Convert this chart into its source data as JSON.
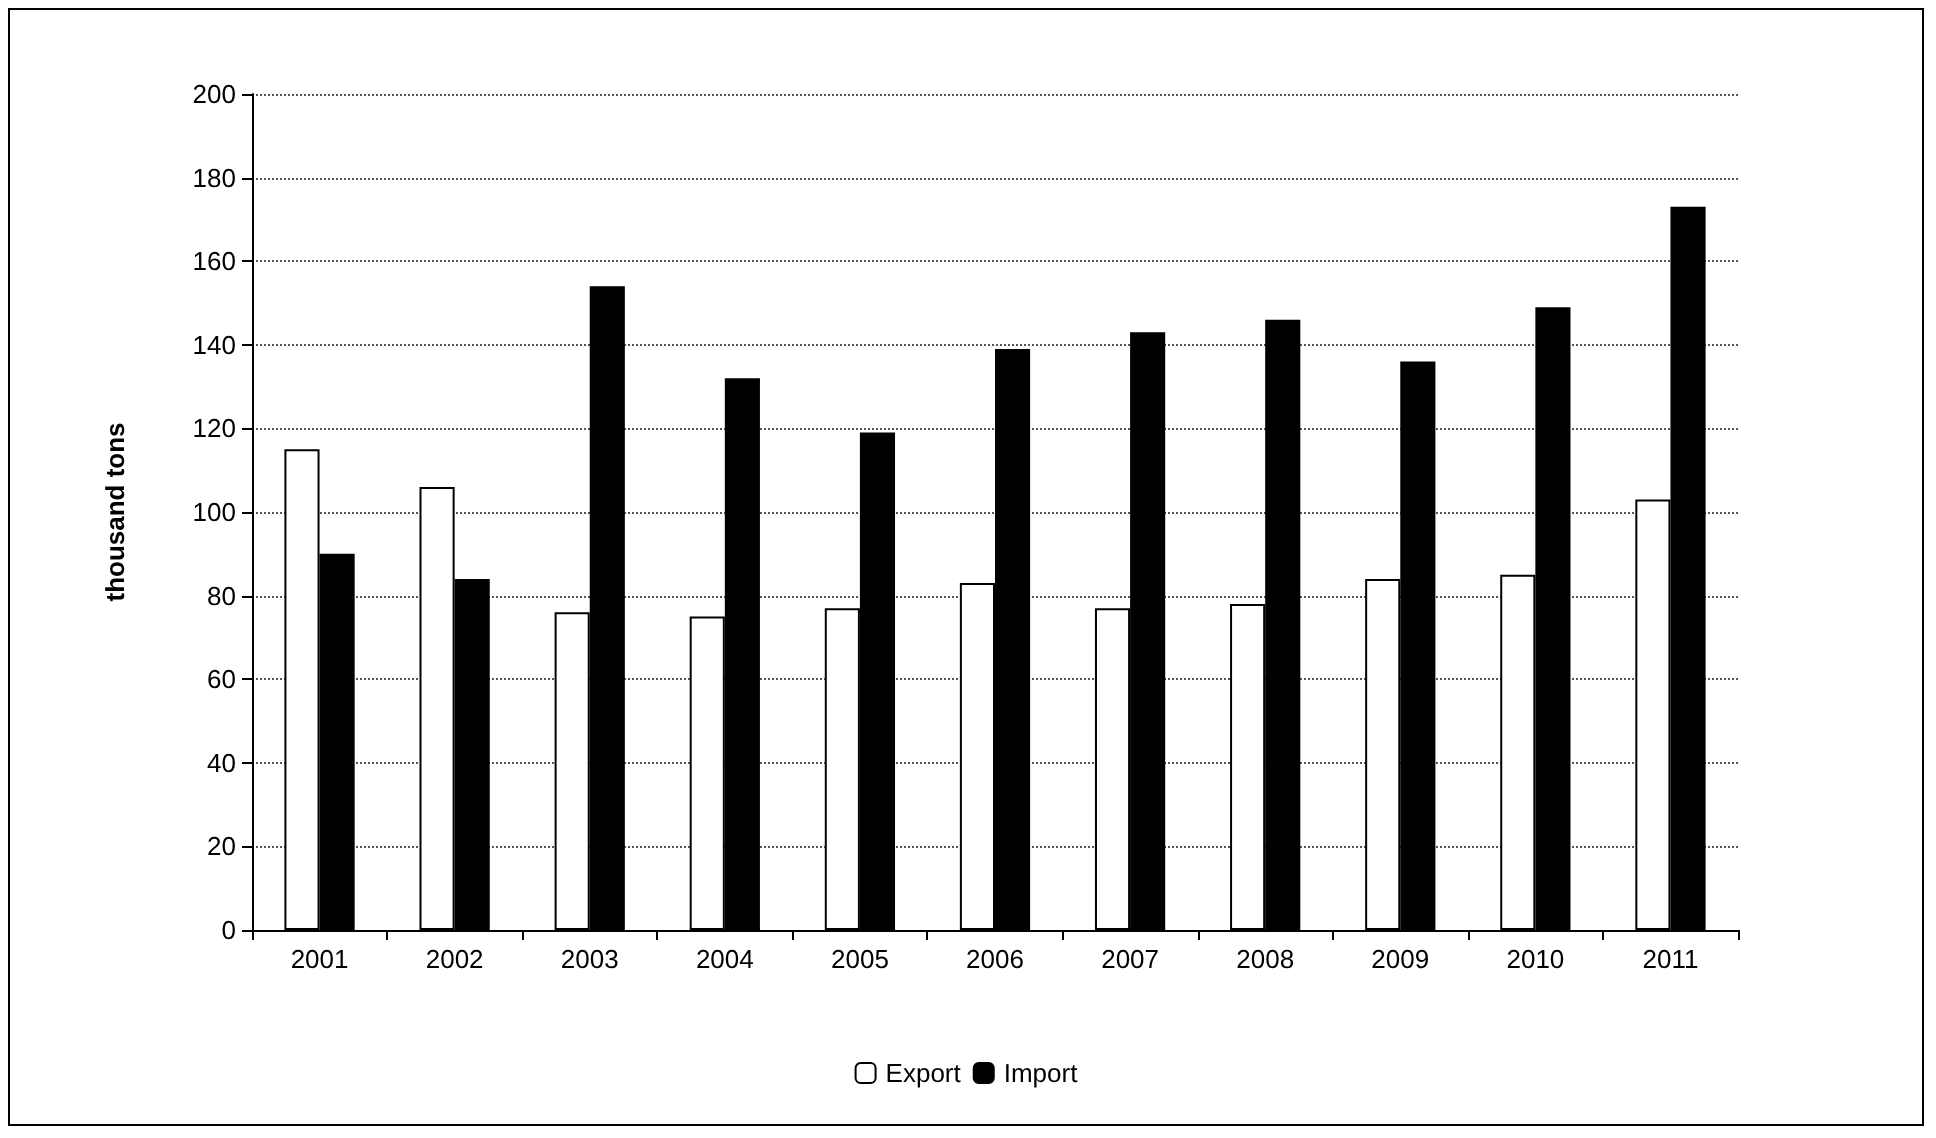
{
  "chart_data": {
    "type": "bar",
    "ylabel": "thousand tons",
    "categories": [
      "2001",
      "2002",
      "2003",
      "2004",
      "2005",
      "2006",
      "2007",
      "2008",
      "2009",
      "2010",
      "2011"
    ],
    "series": [
      {
        "name": "Export",
        "color": "#ffffff",
        "values": [
          115,
          106,
          76,
          75,
          77,
          83,
          77,
          78,
          84,
          85,
          103
        ]
      },
      {
        "name": "Import",
        "color": "#000000",
        "values": [
          90,
          84,
          154,
          132,
          119,
          139,
          143,
          146,
          136,
          149,
          173
        ]
      }
    ],
    "ylim": [
      0,
      200
    ],
    "yticks": [
      0,
      20,
      40,
      60,
      80,
      100,
      120,
      140,
      160,
      180,
      200
    ],
    "grid": "y",
    "legend": "bottom"
  }
}
